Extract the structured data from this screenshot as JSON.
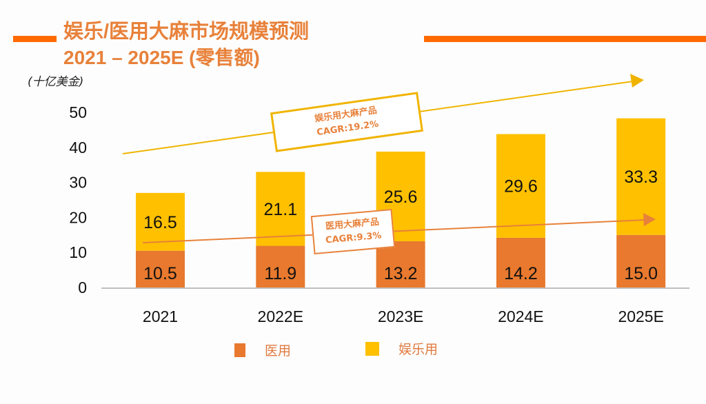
{
  "header": {
    "title_line1": "娱乐/医用大麻市场规模预测",
    "title_line2": "2021 – 2025E (零售额)",
    "unit_label": "(十亿美金)",
    "accent_color": "#ff6a00"
  },
  "annotations": {
    "recreational": {
      "line1": "娱乐用大麻产品",
      "line2": "CAGR:19.2%",
      "color": "#f0b400"
    },
    "medical": {
      "line1": "医用大麻产品",
      "line2": "CAGR:9.3%",
      "color": "#e8813a"
    }
  },
  "legend": [
    {
      "label": "医用",
      "color": "#e8792e"
    },
    {
      "label": "娱乐用",
      "color": "#ffc000"
    }
  ],
  "chart_data": {
    "type": "bar",
    "stacked": true,
    "title": "娱乐/医用大麻市场规模预测 2021 – 2025E (零售额)",
    "ylabel": "(十亿美金)",
    "xlabel": "",
    "categories": [
      "2021",
      "2022E",
      "2023E",
      "2024E",
      "2025E"
    ],
    "series": [
      {
        "name": "医用",
        "color": "#e8792e",
        "values": [
          10.5,
          11.9,
          13.2,
          14.2,
          15.0
        ]
      },
      {
        "name": "娱乐用",
        "color": "#ffc000",
        "values": [
          16.5,
          21.1,
          25.6,
          29.6,
          33.3
        ]
      }
    ],
    "yticks": [
      0,
      10,
      20,
      30,
      40,
      50
    ],
    "ylim": [
      0,
      50
    ],
    "grid": false,
    "legend_position": "bottom",
    "annotations": [
      {
        "text": "娱乐用大麻产品 CAGR:19.2%",
        "type": "trend-arrow"
      },
      {
        "text": "医用大麻产品 CAGR:9.3%",
        "type": "trend-arrow"
      }
    ]
  }
}
